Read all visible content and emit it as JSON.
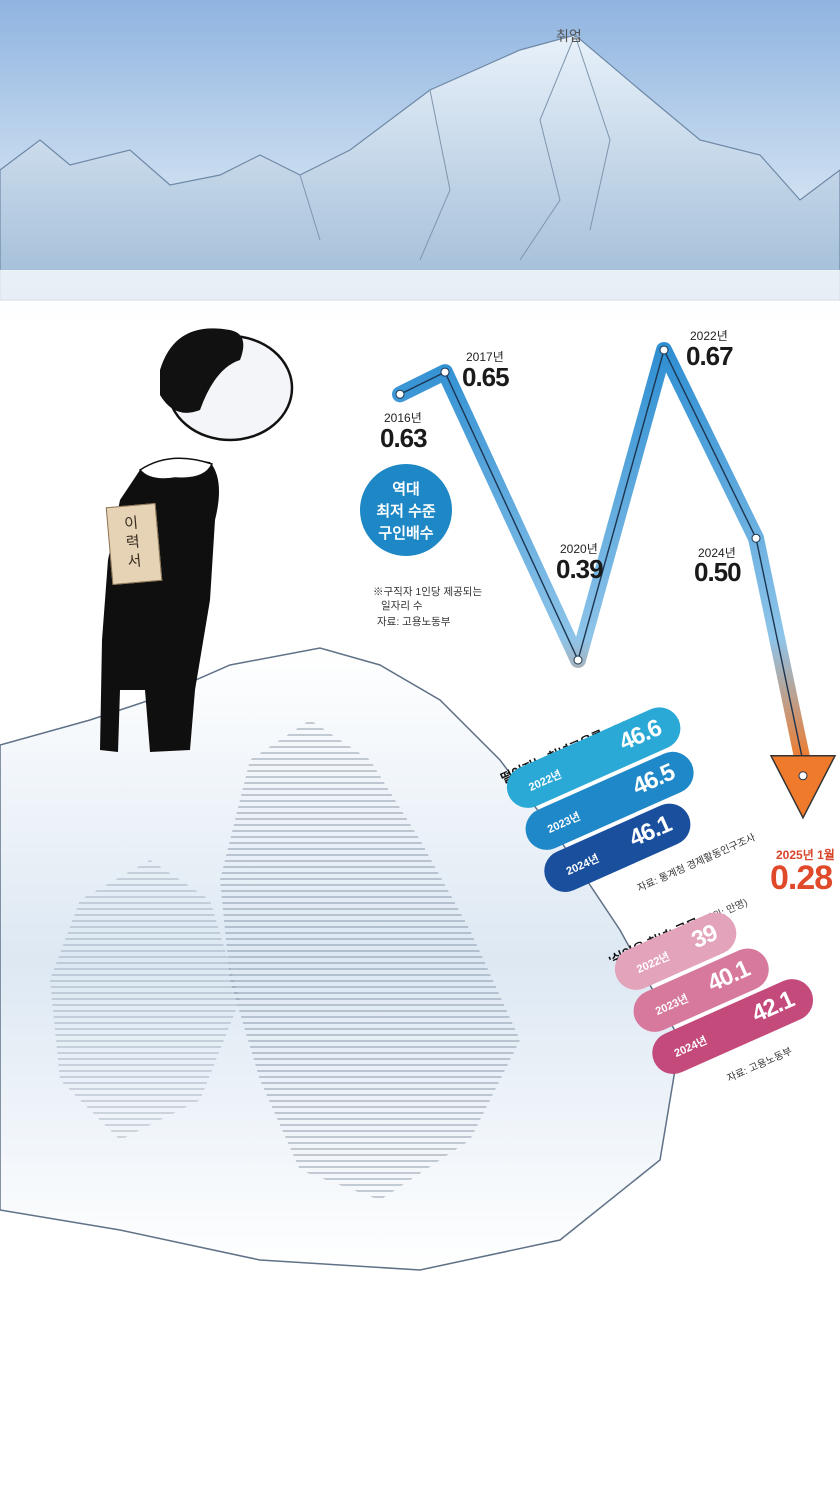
{
  "peak_label": "취업",
  "bubble": {
    "line1": "역대",
    "line2": "최저 수준",
    "line3": "구인배수"
  },
  "footnote": {
    "line1": "※구직자 1인당 제공되는",
    "line2": "일자리 수",
    "source": "자료: 고용노동부"
  },
  "resume_label": "이력서",
  "chart_data": [
    {
      "type": "line",
      "title": "",
      "points": [
        {
          "year_label": "2016년",
          "value": 0.63,
          "value_label": "0.63"
        },
        {
          "year_label": "2017년",
          "value": 0.65,
          "value_label": "0.65"
        },
        {
          "year_label": "2020년",
          "value": 0.39,
          "value_label": "0.39"
        },
        {
          "year_label": "2022년",
          "value": 0.67,
          "value_label": "0.67"
        },
        {
          "year_label": "2024년",
          "value": 0.5,
          "value_label": "0.50"
        },
        {
          "year_label": "2025년 1월",
          "value": 0.28,
          "value_label": "0.28"
        }
      ],
      "colors": {
        "line": "#3a9bd8",
        "arrow_end": "#f07a2b",
        "last_value": "#e04a2a"
      }
    },
    {
      "type": "bar",
      "title": "떨어지는 청년고용률",
      "unit": "(단위: %)",
      "categories": [
        "2022년",
        "2023년",
        "2024년"
      ],
      "values": [
        46.6,
        46.5,
        46.1
      ],
      "value_labels": [
        "46.6",
        "46.5",
        "46.1"
      ],
      "source": "자료: 통계청 경제활동인구조사",
      "colors": [
        "#2aa9d6",
        "#1f88c9",
        "#1a4f9e"
      ]
    },
    {
      "type": "bar",
      "title": "'쉬었음 청년' 규모",
      "unit": "(단위: 만명)",
      "categories": [
        "2022년",
        "2023년",
        "2024년"
      ],
      "values": [
        39,
        40.1,
        42.1
      ],
      "value_labels": [
        "39",
        "40.1",
        "42.1"
      ],
      "source": "자료: 고용노동부",
      "colors": [
        "#e3a3bb",
        "#d7789d",
        "#c44a7c"
      ]
    }
  ]
}
